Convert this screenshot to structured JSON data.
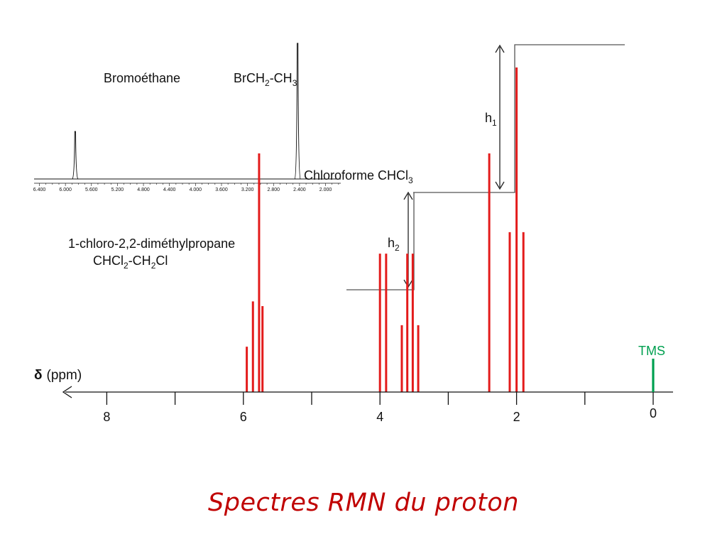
{
  "title": "Spectres RMN du proton",
  "axis": {
    "label_symbol": "δ",
    "label_unit": "(ppm)",
    "ticks": [
      {
        "value": 8,
        "label": "8"
      },
      {
        "value": 7,
        "label": ""
      },
      {
        "value": 6,
        "label": "6"
      },
      {
        "value": 5,
        "label": ""
      },
      {
        "value": 4,
        "label": "4"
      },
      {
        "value": 3,
        "label": ""
      },
      {
        "value": 2,
        "label": "2"
      },
      {
        "value": 1,
        "label": ""
      },
      {
        "value": 0,
        "label": "0"
      }
    ]
  },
  "tms": {
    "label": "TMS",
    "ppm": 0,
    "color": "#00a050"
  },
  "peak_color": "#e31b1b",
  "peaks": [
    {
      "ppm": 5.95,
      "rel": 0.19
    },
    {
      "ppm": 5.86,
      "rel": 0.38
    },
    {
      "ppm": 5.77,
      "rel": 1.0
    },
    {
      "ppm": 5.72,
      "rel": 0.36
    },
    {
      "ppm": 4.0,
      "rel": 0.58
    },
    {
      "ppm": 3.91,
      "rel": 0.58
    },
    {
      "ppm": 3.68,
      "rel": 0.28
    },
    {
      "ppm": 3.6,
      "rel": 0.58
    },
    {
      "ppm": 3.52,
      "rel": 0.58
    },
    {
      "ppm": 3.44,
      "rel": 0.28
    },
    {
      "ppm": 2.4,
      "rel": 1.0
    },
    {
      "ppm": 2.1,
      "rel": 0.67
    },
    {
      "ppm": 2.0,
      "rel": 1.36
    },
    {
      "ppm": 1.9,
      "rel": 0.67
    }
  ],
  "labels": {
    "bromoethane_name": "Bromoéthane",
    "bromoethane_formula": {
      "p1": "BrCH",
      "s1": "2",
      "p2": "-CH",
      "s2": "3"
    },
    "chloroform": {
      "p1": "Chloroforme CHCl",
      "s1": "3"
    },
    "dimethylpropane_name": "1-chloro-2,2-diméthylpropane",
    "dimethylpropane_formula": {
      "p1": "CHCl",
      "s1": "2",
      "p2": "-CH",
      "s2": "",
      "p3": "2",
      "p4": "Cl"
    },
    "h1": {
      "p": "h",
      "s": "1"
    },
    "h2": {
      "p": "h",
      "s": "2"
    }
  },
  "inset": {
    "tick_labels": [
      "6.400",
      "6.000",
      "5.600",
      "5.200",
      "4.800",
      "4.400",
      "4.000",
      "3.600",
      "3.200",
      "2.800",
      "2.400",
      "2.000"
    ],
    "peaks": [
      {
        "ppm": 5.85,
        "rel": 0.35
      },
      {
        "ppm": 2.43,
        "rel": 1.0
      }
    ]
  }
}
